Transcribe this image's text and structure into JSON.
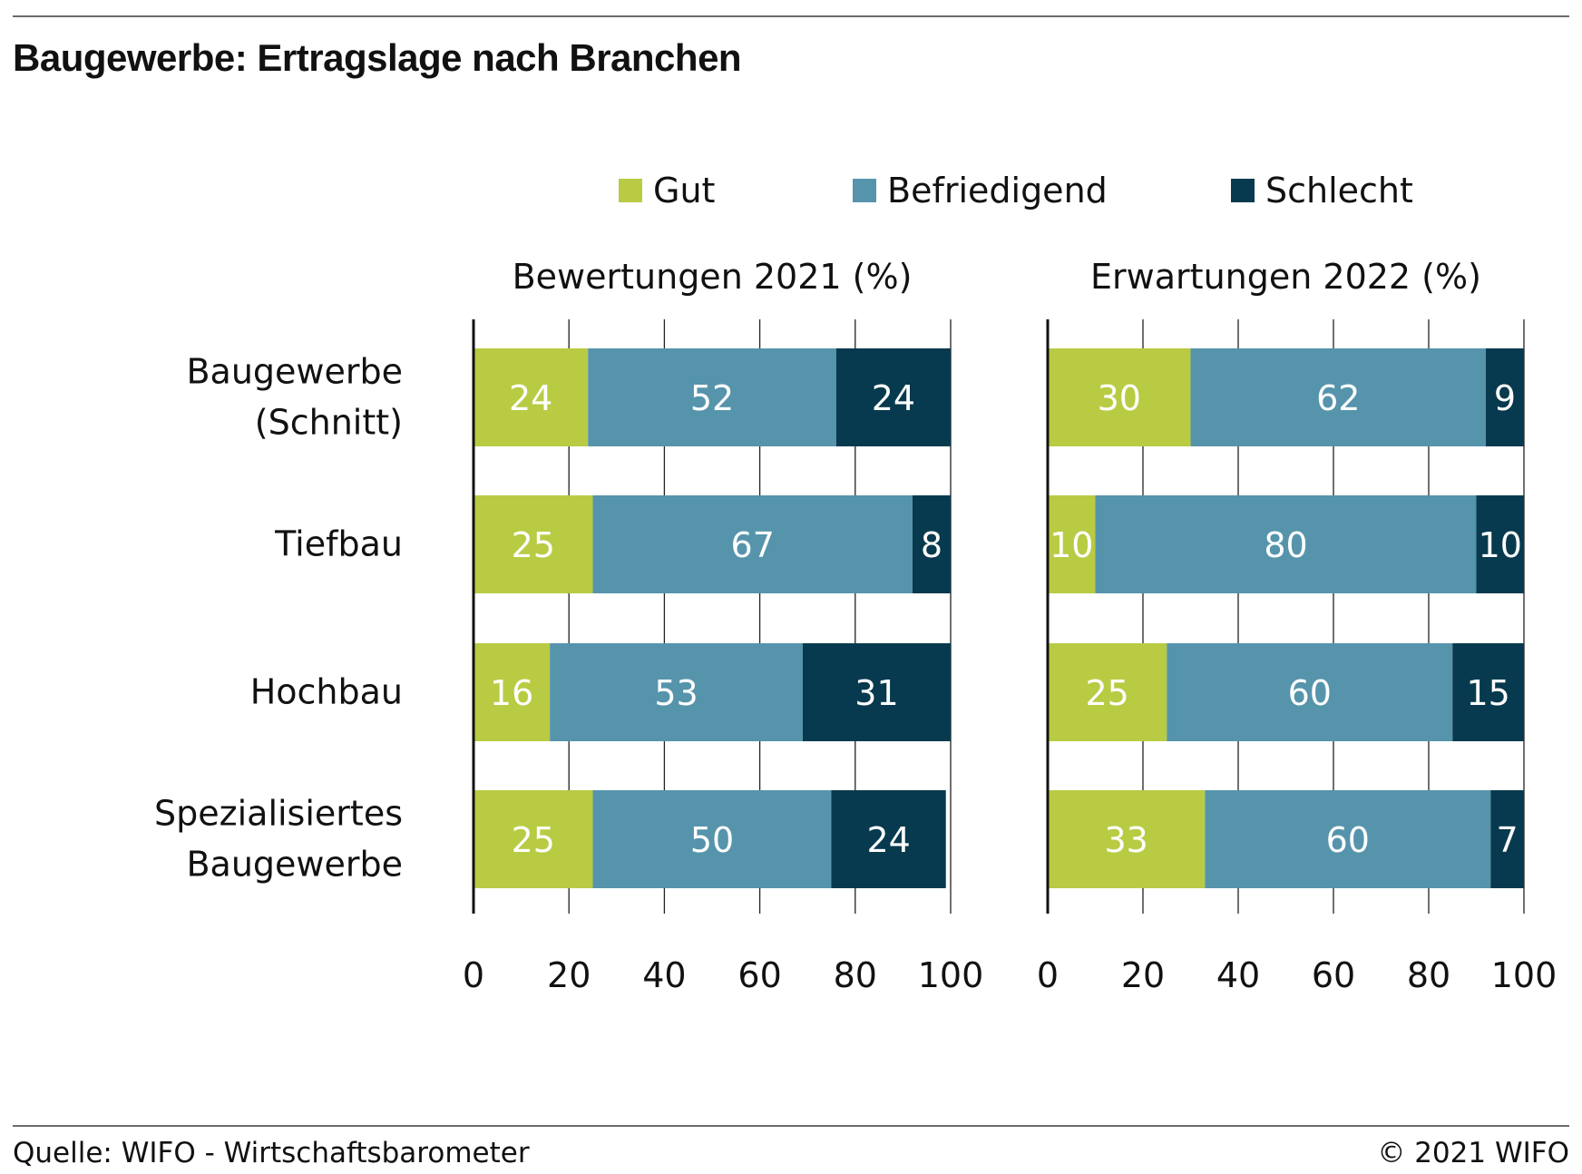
{
  "header": {
    "title": "Baugewerbe: Ertragslage nach Branchen"
  },
  "footer": {
    "source": "Quelle: WIFO - Wirtschaftsbarometer",
    "copyright": "© 2021 WIFO"
  },
  "colors": {
    "Gut": "#b9cb43",
    "Befriedigend": "#5694ac",
    "Schlecht": "#073a4e"
  },
  "chart_data": [
    {
      "type": "bar",
      "orientation": "horizontal",
      "stacked": true,
      "title": "Bewertungen 2021 (%)",
      "categories": [
        [
          "Baugewerbe",
          "(Schnitt)"
        ],
        [
          "Tiefbau"
        ],
        [
          "Hochbau"
        ],
        [
          "Spezialisiertes",
          "Baugewerbe"
        ]
      ],
      "series": [
        {
          "name": "Gut",
          "values": [
            24,
            25,
            16,
            25
          ]
        },
        {
          "name": "Befriedigend",
          "values": [
            52,
            67,
            53,
            50
          ]
        },
        {
          "name": "Schlecht",
          "values": [
            24,
            8,
            31,
            24
          ]
        }
      ],
      "xlim": [
        0,
        100
      ],
      "xticks": [
        0,
        20,
        40,
        60,
        80,
        100
      ],
      "grid": true,
      "legend": "top"
    },
    {
      "type": "bar",
      "orientation": "horizontal",
      "stacked": true,
      "title": "Erwartungen 2022 (%)",
      "categories": [
        [
          "Baugewerbe",
          "(Schnitt)"
        ],
        [
          "Tiefbau"
        ],
        [
          "Hochbau"
        ],
        [
          "Spezialisiertes",
          "Baugewerbe"
        ]
      ],
      "series": [
        {
          "name": "Gut",
          "values": [
            30,
            10,
            25,
            33
          ]
        },
        {
          "name": "Befriedigend",
          "values": [
            62,
            80,
            60,
            60
          ]
        },
        {
          "name": "Schlecht",
          "values": [
            9,
            10,
            15,
            7
          ]
        }
      ],
      "xlim": [
        0,
        100
      ],
      "xticks": [
        0,
        20,
        40,
        60,
        80,
        100
      ],
      "grid": true,
      "legend": "top"
    }
  ]
}
